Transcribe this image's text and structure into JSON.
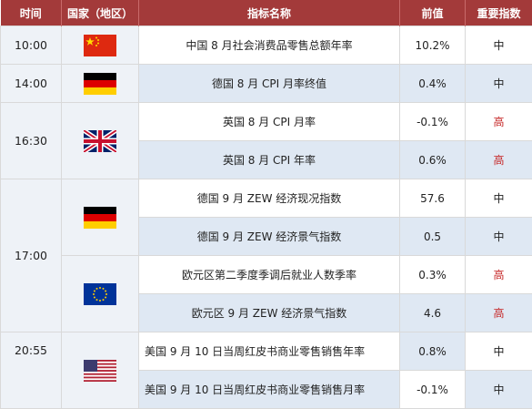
{
  "header": {
    "time": "时间",
    "country": "国家（地区）",
    "indicator": "指标名称",
    "value": "前值",
    "importance": "重要指数"
  },
  "rows": [
    {
      "time": "10:00",
      "country_icon": "china-flag-icon",
      "indicator": "中国 8 月社会消费品零售总额年率",
      "value": "10.2%",
      "importance": "中"
    },
    {
      "time": "14:00",
      "country_icon": "germany-flag-icon",
      "indicator": "德国 8 月 CPI 月率终值",
      "value": "0.4%",
      "importance": "中"
    },
    {
      "time": "16:30",
      "country_icon": "uk-flag-icon",
      "indicator": "英国 8 月 CPI 月率",
      "value": "-0.1%",
      "importance": "高"
    },
    {
      "indicator": "英国 8 月 CPI 年率",
      "value": "0.6%",
      "importance": "高"
    },
    {
      "time": "17:00",
      "country_icon": "germany-flag-icon",
      "indicator": "德国 9 月 ZEW 经济现况指数",
      "value": "57.6",
      "importance": "中"
    },
    {
      "indicator": "德国 9 月 ZEW 经济景气指数",
      "value": "0.5",
      "importance": "中"
    },
    {
      "country_icon": "eu-flag-icon",
      "indicator": "欧元区第二季度季调后就业人数季率",
      "value": "0.3%",
      "importance": "高"
    },
    {
      "indicator": "欧元区 9 月 ZEW 经济景气指数",
      "value": "4.6",
      "importance": "高"
    },
    {
      "time": "20:55",
      "country_icon": "usa-flag-icon",
      "indicator": "美国 9 月 10 日当周红皮书商业零售销售年率",
      "value": "0.8%",
      "importance": "中"
    },
    {
      "indicator": "美国 9 月 10 日当周红皮书商业零售销售月率",
      "value": "-0.1%",
      "importance": "中"
    }
  ]
}
